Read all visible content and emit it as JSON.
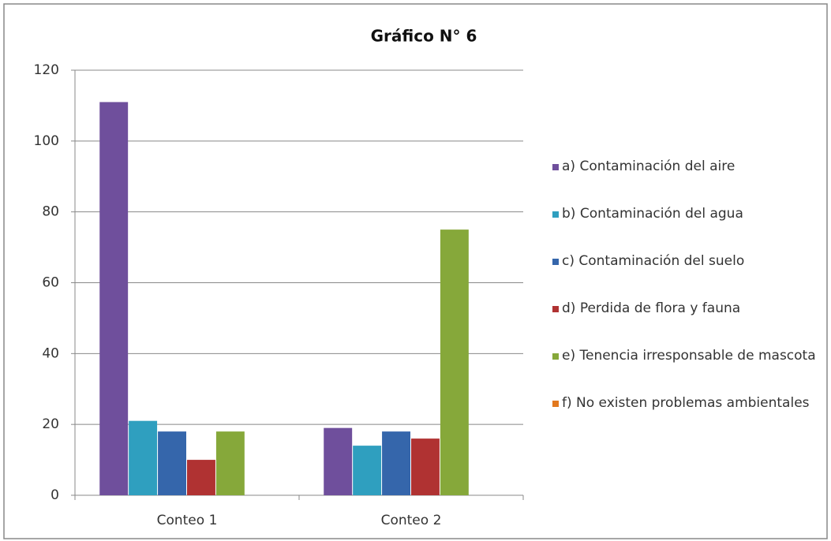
{
  "chart_data": {
    "type": "bar",
    "title": "Gráfico N° 6",
    "categories": [
      "Conteo 1",
      "Conteo 2"
    ],
    "series": [
      {
        "name": "a) Contaminación del aire",
        "color": "#6f4f9c",
        "values": [
          111,
          19
        ]
      },
      {
        "name": "b) Contaminación del agua",
        "color": "#2f9fbf",
        "values": [
          21,
          14
        ]
      },
      {
        "name": "c) Contaminación del suelo",
        "color": "#3566ab",
        "values": [
          18,
          18
        ]
      },
      {
        "name": "d) Perdida de flora y fauna",
        "color": "#b03232",
        "values": [
          10,
          16
        ]
      },
      {
        "name": "e) Tenencia irresponsable de mascota",
        "color": "#86a83a",
        "values": [
          18,
          75
        ]
      },
      {
        "name": "f) No existen problemas ambientales",
        "color": "#e2791f",
        "values": [
          0,
          0
        ]
      }
    ],
    "ylim": [
      0,
      120
    ],
    "yticks": [
      0,
      20,
      40,
      60,
      80,
      100,
      120
    ],
    "grid": true,
    "legend": "right"
  }
}
